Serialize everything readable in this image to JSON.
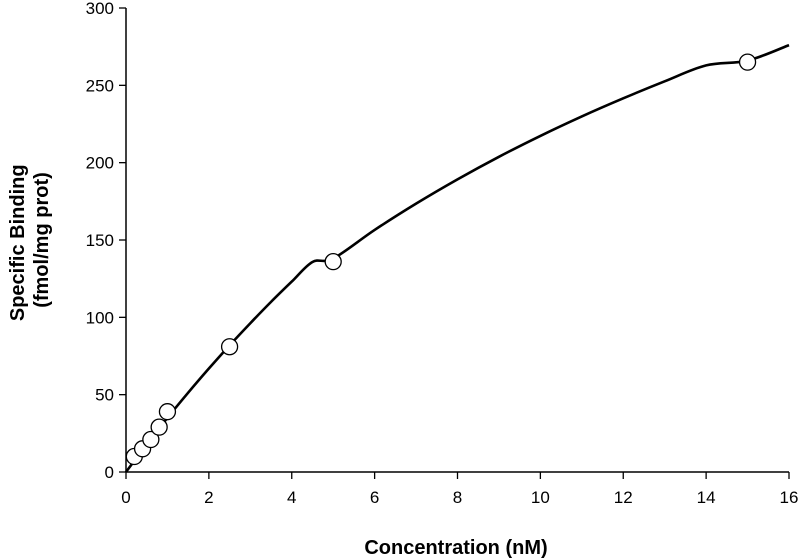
{
  "chart_data": {
    "type": "scatter",
    "title": "",
    "xlabel": "Concentration (nM)",
    "ylabel_lines": [
      "Specific Binding",
      "(fmol/mg prot)"
    ],
    "xlim": [
      0,
      16
    ],
    "ylim": [
      0,
      300
    ],
    "x_ticks": [
      0,
      2,
      4,
      6,
      8,
      10,
      12,
      14,
      16
    ],
    "y_ticks": [
      0,
      50,
      100,
      150,
      200,
      250,
      300
    ],
    "grid": false,
    "legend": "none",
    "series": [
      {
        "values": [
          {
            "x": 0.2,
            "y": 10
          },
          {
            "x": 0.4,
            "y": 15
          },
          {
            "x": 0.6,
            "y": 21
          },
          {
            "x": 0.8,
            "y": 29
          },
          {
            "x": 1.0,
            "y": 39
          },
          {
            "x": 2.5,
            "y": 81
          },
          {
            "x": 5.0,
            "y": 136
          },
          {
            "x": 15.0,
            "y": 265
          }
        ]
      }
    ],
    "fit_curve": [
      {
        "x": 0,
        "y": 0
      },
      {
        "x": 0.5,
        "y": 17.9
      },
      {
        "x": 1,
        "y": 35
      },
      {
        "x": 1.5,
        "y": 51.3
      },
      {
        "x": 2,
        "y": 66.9
      },
      {
        "x": 2.5,
        "y": 81.9
      },
      {
        "x": 3,
        "y": 96.2
      },
      {
        "x": 3.5,
        "y": 110
      },
      {
        "x": 4,
        "y": 123.1
      },
      {
        "x": 4.5,
        "y": 135.8
      },
      {
        "x": 5,
        "y": 138
      },
      {
        "x": 6,
        "y": 156.5
      },
      {
        "x": 7,
        "y": 173.5
      },
      {
        "x": 8,
        "y": 189.2
      },
      {
        "x": 9,
        "y": 203.8
      },
      {
        "x": 10,
        "y": 217.3
      },
      {
        "x": 11,
        "y": 229.9
      },
      {
        "x": 12,
        "y": 241.6
      },
      {
        "x": 13,
        "y": 252.6
      },
      {
        "x": 14,
        "y": 262.9
      },
      {
        "x": 15,
        "y": 266
      },
      {
        "x": 16,
        "y": 276
      }
    ],
    "colors": {
      "line": "#000000",
      "marker_fill": "#ffffff",
      "marker_stroke": "#000000"
    }
  }
}
